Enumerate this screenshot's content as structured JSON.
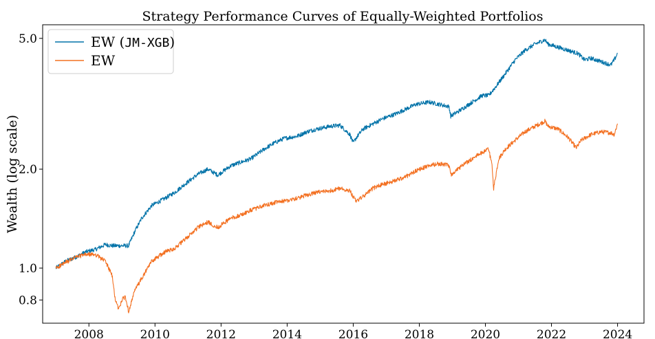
{
  "chart_data": {
    "type": "line",
    "title": "Strategy Performance Curves of Equally-Weighted Portfolios",
    "xlabel": "",
    "ylabel": "Wealth (log scale)",
    "yscale": "log",
    "xlim": [
      2006.6,
      2024.8
    ],
    "ylim": [
      0.68,
      5.5
    ],
    "grid": false,
    "legend_position": "top-left",
    "x_ticks": [
      {
        "value": 2008,
        "label": "2008"
      },
      {
        "value": 2010,
        "label": "2010"
      },
      {
        "value": 2012,
        "label": "2012"
      },
      {
        "value": 2014,
        "label": "2014"
      },
      {
        "value": 2016,
        "label": "2016"
      },
      {
        "value": 2018,
        "label": "2018"
      },
      {
        "value": 2020,
        "label": "2020"
      },
      {
        "value": 2022,
        "label": "2022"
      },
      {
        "value": 2024,
        "label": "2024"
      }
    ],
    "y_ticks": [
      {
        "value": 0.8,
        "label": "0.8"
      },
      {
        "value": 1.0,
        "label": "1.0"
      },
      {
        "value": 2.0,
        "label": "2.0"
      },
      {
        "value": 5.0,
        "label": "5.0"
      }
    ],
    "series": [
      {
        "name": "EW (JM-XGB)",
        "name_parts": [
          "EW (",
          "JM-XGB",
          ")"
        ],
        "color": "#0072a8",
        "x": [
          2007.0,
          2007.3,
          2007.6,
          2007.9,
          2008.2,
          2008.5,
          2008.7,
          2009.0,
          2009.2,
          2009.4,
          2009.6,
          2009.9,
          2010.3,
          2010.6,
          2010.9,
          2011.3,
          2011.6,
          2011.9,
          2012.3,
          2012.6,
          2012.9,
          2013.3,
          2013.6,
          2013.9,
          2014.3,
          2014.6,
          2014.9,
          2015.3,
          2015.6,
          2015.9,
          2016.0,
          2016.1,
          2016.3,
          2016.6,
          2016.9,
          2017.3,
          2017.6,
          2017.9,
          2018.3,
          2018.6,
          2018.9,
          2018.95,
          2019.3,
          2019.6,
          2019.9,
          2020.1,
          2020.3,
          2020.6,
          2020.9,
          2021.2,
          2021.5,
          2021.8,
          2021.9,
          2022.2,
          2022.5,
          2022.8,
          2023.0,
          2023.2,
          2023.5,
          2023.8,
          2023.9,
          2024.0
        ],
        "y": [
          1.0,
          1.05,
          1.08,
          1.12,
          1.14,
          1.18,
          1.17,
          1.17,
          1.17,
          1.3,
          1.42,
          1.55,
          1.63,
          1.7,
          1.8,
          1.93,
          2.0,
          1.92,
          2.05,
          2.1,
          2.15,
          2.3,
          2.4,
          2.48,
          2.52,
          2.6,
          2.65,
          2.7,
          2.72,
          2.55,
          2.4,
          2.5,
          2.65,
          2.75,
          2.85,
          2.95,
          3.05,
          3.15,
          3.2,
          3.15,
          3.1,
          2.9,
          3.05,
          3.2,
          3.35,
          3.35,
          3.55,
          3.9,
          4.3,
          4.6,
          4.8,
          4.95,
          4.8,
          4.7,
          4.6,
          4.5,
          4.3,
          4.35,
          4.25,
          4.15,
          4.3,
          4.5
        ]
      },
      {
        "name": "EW",
        "color": "#f37021",
        "x": [
          2007.0,
          2007.3,
          2007.6,
          2007.9,
          2008.2,
          2008.5,
          2008.7,
          2008.8,
          2008.9,
          2009.0,
          2009.1,
          2009.2,
          2009.4,
          2009.6,
          2009.9,
          2010.3,
          2010.6,
          2010.9,
          2011.3,
          2011.6,
          2011.9,
          2012.3,
          2012.6,
          2012.9,
          2013.3,
          2013.6,
          2013.9,
          2014.3,
          2014.6,
          2014.9,
          2015.3,
          2015.6,
          2015.9,
          2016.0,
          2016.1,
          2016.3,
          2016.6,
          2016.9,
          2017.3,
          2017.6,
          2017.9,
          2018.3,
          2018.6,
          2018.9,
          2018.95,
          2019.3,
          2019.6,
          2019.9,
          2020.1,
          2020.2,
          2020.25,
          2020.4,
          2020.6,
          2020.9,
          2021.2,
          2021.5,
          2021.8,
          2021.9,
          2022.2,
          2022.5,
          2022.75,
          2022.9,
          2023.2,
          2023.5,
          2023.8,
          2023.9,
          2024.0
        ],
        "y": [
          1.0,
          1.04,
          1.08,
          1.1,
          1.1,
          1.05,
          0.95,
          0.8,
          0.75,
          0.8,
          0.82,
          0.74,
          0.86,
          0.93,
          1.05,
          1.12,
          1.15,
          1.22,
          1.33,
          1.38,
          1.33,
          1.42,
          1.45,
          1.5,
          1.55,
          1.58,
          1.6,
          1.63,
          1.67,
          1.7,
          1.72,
          1.75,
          1.72,
          1.65,
          1.6,
          1.65,
          1.75,
          1.8,
          1.85,
          1.9,
          1.98,
          2.05,
          2.08,
          2.05,
          1.92,
          2.05,
          2.15,
          2.25,
          2.3,
          2.05,
          1.75,
          2.15,
          2.3,
          2.45,
          2.6,
          2.7,
          2.8,
          2.7,
          2.65,
          2.5,
          2.32,
          2.45,
          2.55,
          2.6,
          2.58,
          2.55,
          2.75
        ]
      }
    ]
  }
}
